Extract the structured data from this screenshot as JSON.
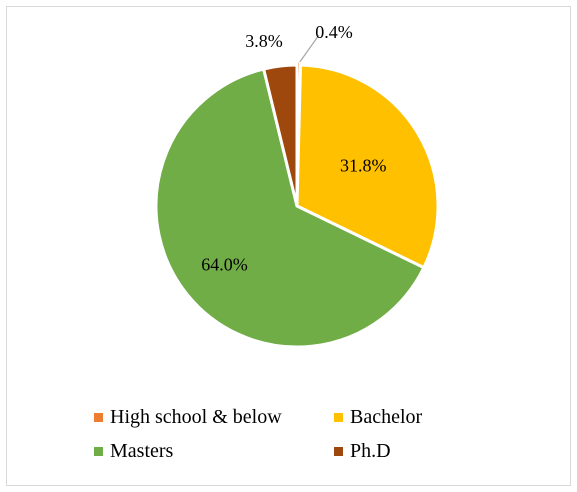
{
  "chart_data": {
    "type": "pie",
    "title": "",
    "slices": [
      {
        "name": "High school & below",
        "value": 0.4,
        "label": "0.4%",
        "color": "#ED7D31"
      },
      {
        "name": "Bachelor",
        "value": 31.8,
        "label": "31.8%",
        "color": "#FFC000"
      },
      {
        "name": "Masters",
        "value": 64.0,
        "label": "64.0%",
        "color": "#70AD47"
      },
      {
        "name": "Ph.D",
        "value": 3.8,
        "label": "3.8%",
        "color": "#9E480E"
      }
    ],
    "start_angle": "12 o'clock",
    "direction": "clockwise",
    "legend_position": "bottom",
    "label_leader_line": "0.4%"
  },
  "legend": {
    "items": [
      {
        "label": "High school & below",
        "color": "#ED7D31"
      },
      {
        "label": "Bachelor",
        "color": "#FFC000"
      },
      {
        "label": "Masters",
        "color": "#70AD47"
      },
      {
        "label": "Ph.D",
        "color": "#9E480E"
      }
    ]
  }
}
